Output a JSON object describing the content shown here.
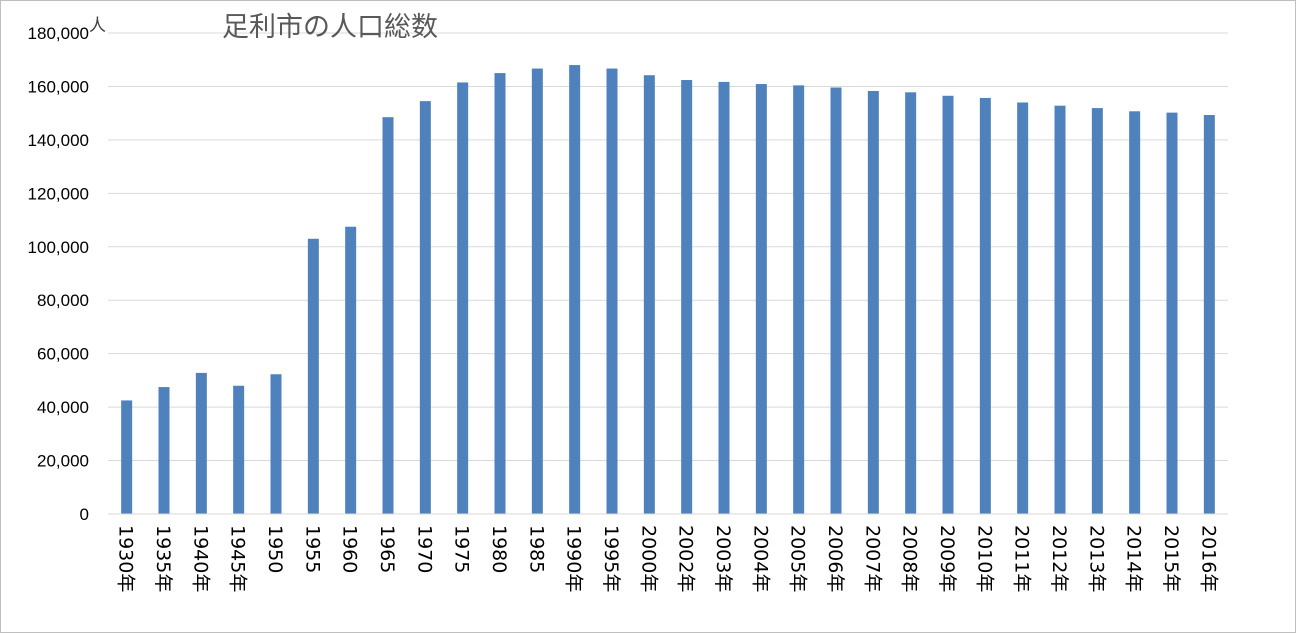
{
  "chart_data": {
    "type": "bar",
    "title": "足利市の人口総数",
    "ylabel": "人",
    "xlabel": "",
    "ylim": [
      0,
      180000
    ],
    "yticks": [
      "0",
      "20,000",
      "40,000",
      "60,000",
      "80,000",
      "100,000",
      "120,000",
      "140,000",
      "160,000",
      "180,000"
    ],
    "grid": true,
    "bar_color": "#4f81bd",
    "categories": [
      "1930年",
      "1935年",
      "1940年",
      "1945年",
      "1950",
      "1955",
      "1960",
      "1965",
      "1970",
      "1975",
      "1980",
      "1985",
      "1990年",
      "1995年",
      "2000年",
      "2002年",
      "2003年",
      "2004年",
      "2005年",
      "2006年",
      "2007年",
      "2008年",
      "2009年",
      "2010年",
      "2011年",
      "2012年",
      "2013年",
      "2014年",
      "2015年",
      "2016年"
    ],
    "values": [
      42500,
      47500,
      52800,
      48000,
      52300,
      103000,
      107500,
      148500,
      154500,
      161500,
      165000,
      166700,
      168000,
      166700,
      164200,
      162400,
      161700,
      160900,
      160400,
      159600,
      158300,
      157800,
      156500,
      155700,
      154000,
      152800,
      151900,
      150700,
      150200,
      149300
    ]
  }
}
